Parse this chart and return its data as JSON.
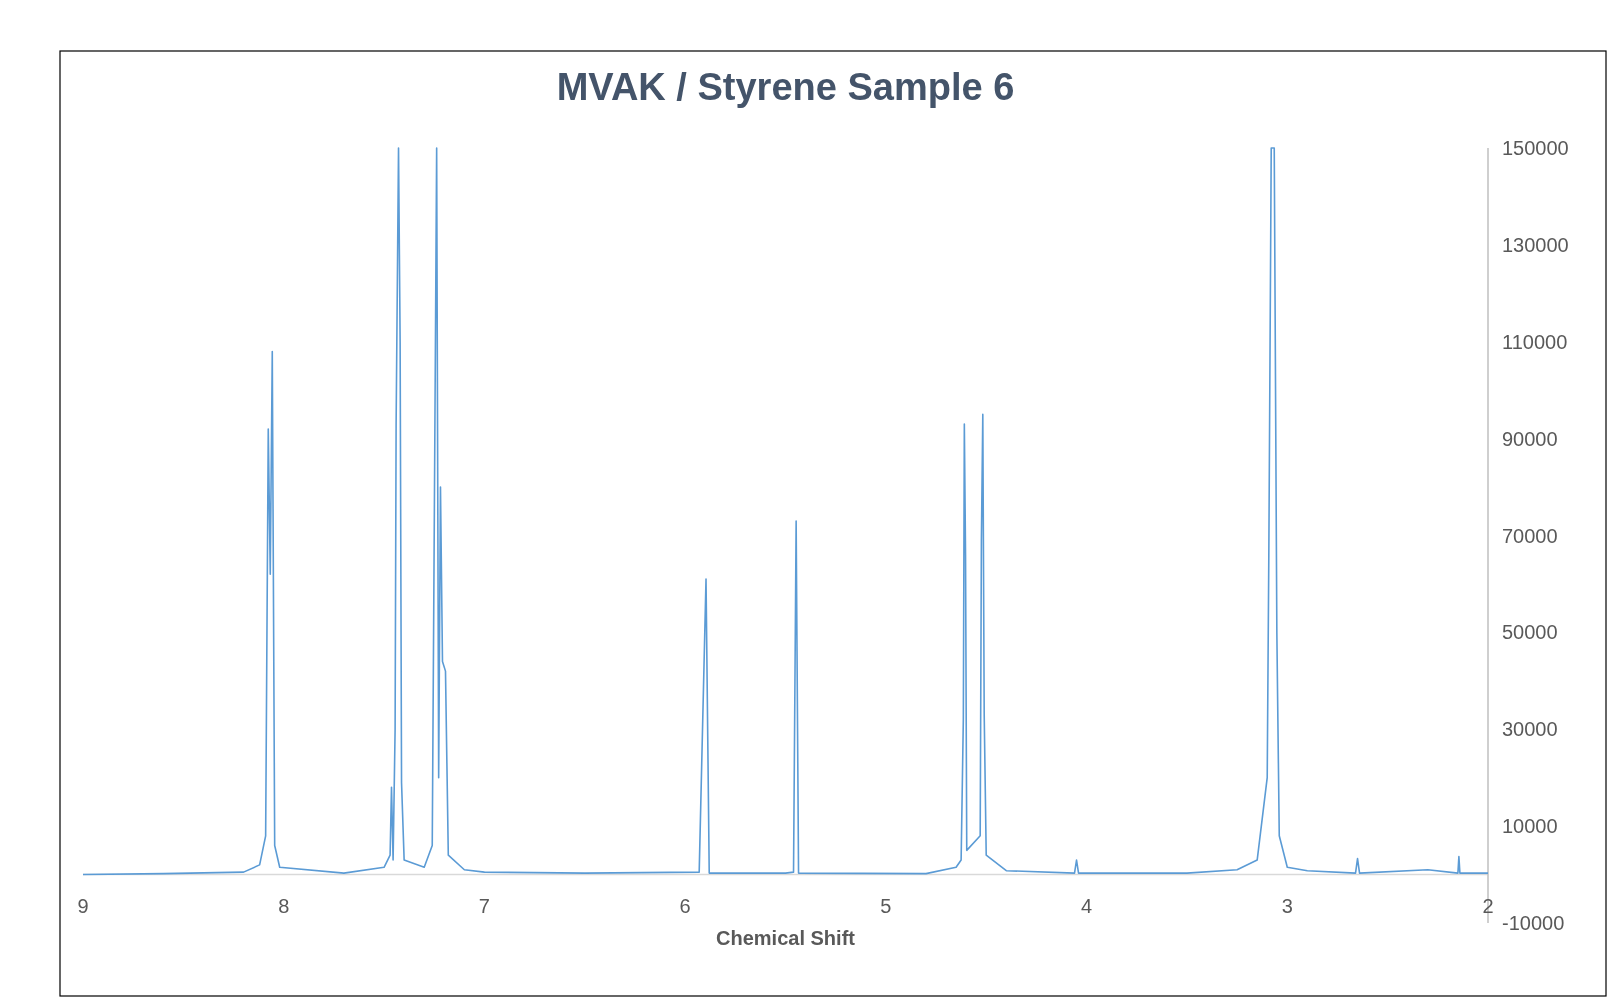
{
  "chart_data": {
    "type": "line",
    "title": "MVAK / Styrene Sample 6",
    "xlabel": "Chemical Shift",
    "xlim": [
      9,
      2
    ],
    "xticks": [
      9,
      8,
      7,
      6,
      5,
      4,
      3,
      2
    ],
    "ylim": [
      -10000,
      150000
    ],
    "yticks": [
      -10000,
      10000,
      30000,
      50000,
      70000,
      90000,
      110000,
      130000,
      150000
    ],
    "grid": false,
    "x": [
      9.0,
      8.6,
      8.2,
      8.12,
      8.09,
      8.077,
      8.067,
      8.057,
      8.045,
      8.02,
      7.7,
      7.5,
      7.47,
      7.463,
      7.455,
      7.445,
      7.44,
      7.428,
      7.42,
      7.413,
      7.4,
      7.3,
      7.26,
      7.238,
      7.228,
      7.219,
      7.209,
      7.194,
      7.18,
      7.1,
      7.0,
      6.5,
      5.93,
      5.896,
      5.88,
      5.5,
      5.46,
      5.447,
      5.435,
      4.8,
      4.65,
      4.625,
      4.614,
      4.609,
      4.603,
      4.597,
      4.53,
      4.524,
      4.517,
      4.51,
      4.5,
      4.4,
      4.06,
      4.05,
      4.04,
      3.5,
      3.25,
      3.15,
      3.1,
      3.092,
      3.08,
      3.065,
      3.052,
      3.04,
      3.0,
      2.9,
      2.66,
      2.65,
      2.64,
      2.3,
      2.15,
      2.145,
      2.14,
      2.0
    ],
    "series": [
      {
        "color": "#5b9bd5",
        "values": [
          0,
          200,
          500,
          2000,
          8000,
          92000,
          62000,
          108000,
          6000,
          1500,
          300,
          1500,
          4000,
          18000,
          3000,
          30000,
          93000,
          150000,
          110000,
          19000,
          3000,
          1500,
          6000,
          150000,
          20000,
          80000,
          44000,
          42000,
          4000,
          1000,
          500,
          300,
          500,
          61000,
          300,
          300,
          500,
          73000,
          300,
          200,
          1500,
          3000,
          32000,
          93000,
          66000,
          5000,
          8000,
          69000,
          95000,
          33000,
          4000,
          800,
          300,
          3000,
          300,
          300,
          1000,
          3000,
          20000,
          66000,
          150000,
          150000,
          50000,
          8000,
          1500,
          800,
          300,
          3300,
          300,
          1000,
          300,
          3700,
          300,
          300
        ]
      }
    ]
  }
}
